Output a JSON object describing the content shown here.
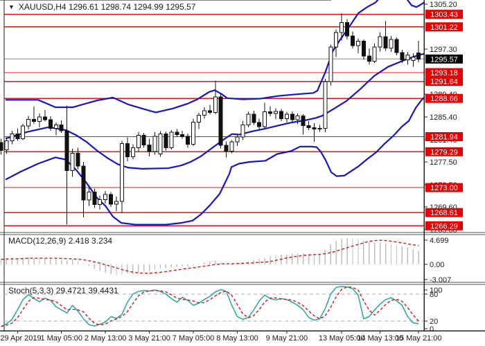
{
  "header": {
    "symbol_ohlc_label": "XAUUSD,H4  1296.61 1298.74 1294.99 1295.57",
    "dropdown_glyph": "▼"
  },
  "colors": {
    "background": "#ffffff",
    "level_line": "#f01010",
    "level_box_bg": "#e60000",
    "level_box_text": "#ffffff",
    "current_line": "#b0b0b0",
    "current_box_bg": "#000000",
    "current_box_text": "#ffffff",
    "band_blue": "#1414cc",
    "candle_up_fill": "#ffffff",
    "candle_down_fill": "#111111",
    "candle_stroke": "#111111",
    "macd_hist": "#bdbdbd",
    "signal_red": "#e01010",
    "stoch_k": "#26a69e",
    "stoch_level_dash": "#aaaaaa",
    "axis_line": "#222222",
    "axis_text": "#1a1a1a",
    "panel_border": "#555555"
  },
  "indicator_labels": {
    "macd": "MACD(12,26,9) 2.418 3.234",
    "stoch": "Stoch(5,3,3) 29.4721 39.4431"
  },
  "chart_data": {
    "type": "candlestick-with-indicators",
    "symbol": "XAUUSD",
    "timeframe": "H4",
    "current_bar": {
      "open": 1296.61,
      "high": 1298.74,
      "low": 1294.99,
      "close": 1295.57
    },
    "current_price": 1295.57,
    "main": {
      "y_ticks": [
        {
          "label": "1305.20",
          "price": 1305.2
        },
        {
          "label": "1297.30",
          "price": 1297.3
        },
        {
          "label": "1289.40",
          "price": 1289.4
        },
        {
          "label": "1285.40",
          "price": 1285.4
        },
        {
          "label": "1281.40",
          "price": 1281.4
        },
        {
          "label": "1277.50",
          "price": 1277.5
        },
        {
          "label": "1273.50",
          "price": 1273.5
        },
        {
          "label": "1269.60",
          "price": 1269.6
        },
        {
          "label": "1265.60",
          "price": 1265.6
        }
      ],
      "levels": [
        1303.43,
        1301.22,
        1293.18,
        1291.64,
        1288.66,
        1281.94,
        1279.29,
        1273.0,
        1268.61,
        1266.29
      ],
      "level_labels": [
        "1303.43",
        "1301.22",
        "1293.18",
        "1291.64",
        "1288.66",
        "1281.94",
        "1279.29",
        "1273.00",
        "1268.61",
        "1266.29"
      ],
      "current_label": "1295.57",
      "candles_ohlc": [
        [
          1280.9,
          1281.6,
          1278.8,
          1279.5
        ],
        [
          1279.6,
          1281.8,
          1278.9,
          1281.2
        ],
        [
          1281.2,
          1283.0,
          1280.6,
          1282.4
        ],
        [
          1282.4,
          1283.4,
          1281.2,
          1281.6
        ],
        [
          1281.6,
          1284.2,
          1281.3,
          1283.8
        ],
        [
          1283.8,
          1285.6,
          1283.2,
          1285.0
        ],
        [
          1285.0,
          1287.2,
          1284.2,
          1284.6
        ],
        [
          1284.6,
          1286.0,
          1283.6,
          1285.4
        ],
        [
          1285.4,
          1286.6,
          1284.6,
          1284.9
        ],
        [
          1284.9,
          1285.5,
          1283.0,
          1283.4
        ],
        [
          1283.4,
          1284.4,
          1282.2,
          1284.0
        ],
        [
          1284.0,
          1284.8,
          1282.6,
          1283.0
        ],
        [
          1283.0,
          1287.4,
          1266.5,
          1276.0
        ],
        [
          1276.0,
          1279.8,
          1274.9,
          1279.0
        ],
        [
          1279.0,
          1280.0,
          1276.2,
          1276.8
        ],
        [
          1276.8,
          1277.5,
          1267.8,
          1270.8
        ],
        [
          1270.8,
          1273.0,
          1269.8,
          1272.2
        ],
        [
          1272.2,
          1272.8,
          1269.4,
          1270.0
        ],
        [
          1270.0,
          1271.6,
          1269.2,
          1270.9
        ],
        [
          1270.9,
          1272.4,
          1270.2,
          1271.8
        ],
        [
          1271.8,
          1272.2,
          1269.6,
          1270.1
        ],
        [
          1270.1,
          1271.4,
          1268.9,
          1270.6
        ],
        [
          1270.6,
          1281.2,
          1268.6,
          1280.7
        ],
        [
          1280.7,
          1281.8,
          1277.6,
          1278.4
        ],
        [
          1278.4,
          1280.6,
          1277.9,
          1280.0
        ],
        [
          1280.0,
          1282.8,
          1279.3,
          1282.2
        ],
        [
          1282.2,
          1282.6,
          1280.0,
          1280.5
        ],
        [
          1280.5,
          1281.6,
          1278.5,
          1279.3
        ],
        [
          1279.3,
          1282.7,
          1278.8,
          1282.0
        ],
        [
          1278.9,
          1282.9,
          1278.4,
          1282.4
        ],
        [
          1282.4,
          1282.8,
          1279.5,
          1280.0
        ],
        [
          1280.0,
          1283.1,
          1279.7,
          1282.7
        ],
        [
          1282.7,
          1283.3,
          1281.9,
          1282.3
        ],
        [
          1282.3,
          1283.0,
          1281.6,
          1282.0
        ],
        [
          1282.0,
          1282.5,
          1280.0,
          1280.6
        ],
        [
          1280.6,
          1285.1,
          1280.3,
          1284.5
        ],
        [
          1284.5,
          1286.1,
          1283.3,
          1285.7
        ],
        [
          1285.7,
          1287.1,
          1285.1,
          1286.5
        ],
        [
          1286.5,
          1287.5,
          1285.8,
          1286.2
        ],
        [
          1286.2,
          1291.8,
          1285.9,
          1288.9
        ],
        [
          1288.9,
          1289.5,
          1279.9,
          1280.4
        ],
        [
          1280.4,
          1281.1,
          1278.3,
          1279.4
        ],
        [
          1279.4,
          1281.3,
          1279.0,
          1281.0
        ],
        [
          1281.0,
          1282.5,
          1280.3,
          1281.9
        ],
        [
          1281.9,
          1284.7,
          1281.3,
          1284.0
        ],
        [
          1284.0,
          1286.3,
          1283.6,
          1285.9
        ],
        [
          1285.9,
          1286.5,
          1284.0,
          1284.4
        ],
        [
          1284.4,
          1285.1,
          1283.3,
          1283.7
        ],
        [
          1283.7,
          1287.9,
          1283.4,
          1286.3
        ],
        [
          1286.3,
          1287.3,
          1285.5,
          1286.0
        ],
        [
          1286.0,
          1286.9,
          1285.0,
          1286.4
        ],
        [
          1286.4,
          1286.8,
          1284.7,
          1285.1
        ],
        [
          1285.1,
          1286.3,
          1284.4,
          1285.9
        ],
        [
          1285.9,
          1286.4,
          1284.5,
          1284.9
        ],
        [
          1284.9,
          1286.0,
          1284.1,
          1285.6
        ],
        [
          1285.6,
          1285.9,
          1282.3,
          1283.9
        ],
        [
          1283.9,
          1284.7,
          1283.1,
          1283.5
        ],
        [
          1283.5,
          1284.3,
          1281.0,
          1283.3
        ],
        [
          1283.3,
          1284.0,
          1282.8,
          1283.4
        ],
        [
          1283.4,
          1292.1,
          1282.7,
          1291.6
        ],
        [
          1291.6,
          1298.1,
          1290.9,
          1297.7
        ],
        [
          1297.7,
          1300.8,
          1295.9,
          1300.2
        ],
        [
          1300.2,
          1303.6,
          1298.8,
          1302.0
        ],
        [
          1302.0,
          1302.6,
          1299.0,
          1299.6
        ],
        [
          1299.6,
          1300.4,
          1297.4,
          1297.9
        ],
        [
          1297.9,
          1299.2,
          1296.6,
          1298.7
        ],
        [
          1298.7,
          1299.0,
          1295.5,
          1296.1
        ],
        [
          1296.1,
          1297.4,
          1294.6,
          1295.2
        ],
        [
          1295.2,
          1298.3,
          1294.9,
          1297.7
        ],
        [
          1297.7,
          1300.2,
          1296.9,
          1299.5
        ],
        [
          1299.5,
          1302.2,
          1297.0,
          1297.5
        ],
        [
          1297.5,
          1299.6,
          1296.8,
          1299.0
        ],
        [
          1299.0,
          1299.4,
          1296.2,
          1296.7
        ],
        [
          1296.7,
          1297.2,
          1294.9,
          1295.4
        ],
        [
          1295.4,
          1296.8,
          1294.6,
          1296.3
        ],
        [
          1295.3,
          1296.6,
          1294.2,
          1295.9
        ],
        [
          1296.61,
          1298.74,
          1294.99,
          1295.57
        ]
      ],
      "bollinger": {
        "upper": [
          [
            8,
            1288.4
          ],
          [
            55,
            1288.4
          ],
          [
            80,
            1287.1
          ],
          [
            105,
            1287.1
          ],
          [
            140,
            1288.3
          ],
          [
            163,
            1288.8
          ],
          [
            185,
            1287.6
          ],
          [
            210,
            1286.7
          ],
          [
            225,
            1286.2
          ],
          [
            250,
            1286.9
          ],
          [
            270,
            1287.7
          ],
          [
            285,
            1288.5
          ],
          [
            302,
            1289.8
          ],
          [
            310,
            1290.1
          ],
          [
            320,
            1289.4
          ],
          [
            328,
            1288.7
          ],
          [
            350,
            1288.5
          ],
          [
            375,
            1288.6
          ],
          [
            402,
            1289.1
          ],
          [
            430,
            1289.4
          ],
          [
            452,
            1289.6
          ],
          [
            458,
            1290.0
          ],
          [
            470,
            1293.4
          ],
          [
            480,
            1296.9
          ],
          [
            490,
            1298.8
          ],
          [
            505,
            1301.4
          ],
          [
            517,
            1303.6
          ],
          [
            530,
            1304.7
          ],
          [
            542,
            1305.5
          ],
          [
            548,
            1306.3
          ],
          [
            586,
            1306.3
          ],
          [
            594,
            1305.0
          ],
          [
            601,
            1304.7
          ],
          [
            607,
            1305.1
          ],
          [
            612,
            1305.5
          ]
        ],
        "middle": [
          [
            8,
            1281.6
          ],
          [
            40,
            1282.8
          ],
          [
            70,
            1283.6
          ],
          [
            85,
            1283.3
          ],
          [
            95,
            1283.1
          ],
          [
            110,
            1282.2
          ],
          [
            125,
            1281.0
          ],
          [
            140,
            1279.5
          ],
          [
            155,
            1278.2
          ],
          [
            170,
            1277.1
          ],
          [
            185,
            1276.5
          ],
          [
            205,
            1276.3
          ],
          [
            243,
            1276.4
          ],
          [
            262,
            1276.9
          ],
          [
            275,
            1277.5
          ],
          [
            290,
            1278.5
          ],
          [
            310,
            1280.3
          ],
          [
            327,
            1281.8
          ],
          [
            335,
            1282.4
          ],
          [
            345,
            1282.3
          ],
          [
            365,
            1282.9
          ],
          [
            385,
            1283.4
          ],
          [
            402,
            1283.9
          ],
          [
            420,
            1284.4
          ],
          [
            440,
            1284.8
          ],
          [
            455,
            1285.2
          ],
          [
            465,
            1285.6
          ],
          [
            480,
            1286.7
          ],
          [
            500,
            1288.2
          ],
          [
            520,
            1290.3
          ],
          [
            540,
            1292.6
          ],
          [
            560,
            1294.2
          ],
          [
            580,
            1295.2
          ],
          [
            600,
            1296.1
          ],
          [
            612,
            1296.5
          ]
        ],
        "lower": [
          [
            8,
            1274.4
          ],
          [
            30,
            1275.8
          ],
          [
            55,
            1277.2
          ],
          [
            80,
            1278.3
          ],
          [
            95,
            1277.9
          ],
          [
            110,
            1276.1
          ],
          [
            125,
            1273.8
          ],
          [
            140,
            1271.2
          ],
          [
            152,
            1269.8
          ],
          [
            163,
            1267.9
          ],
          [
            175,
            1266.8
          ],
          [
            195,
            1266.5
          ],
          [
            240,
            1266.5
          ],
          [
            262,
            1266.8
          ],
          [
            278,
            1267.2
          ],
          [
            290,
            1268.3
          ],
          [
            303,
            1269.9
          ],
          [
            317,
            1271.9
          ],
          [
            327,
            1274.4
          ],
          [
            331,
            1275.4
          ],
          [
            334,
            1276.6
          ],
          [
            345,
            1277.2
          ],
          [
            360,
            1277.5
          ],
          [
            383,
            1277.7
          ],
          [
            400,
            1278.9
          ],
          [
            420,
            1279.4
          ],
          [
            433,
            1280.2
          ],
          [
            450,
            1280.2
          ],
          [
            457,
            1280.1
          ],
          [
            463,
            1279.3
          ],
          [
            470,
            1277.8
          ],
          [
            478,
            1275.7
          ],
          [
            486,
            1275.0
          ],
          [
            497,
            1275.1
          ],
          [
            507,
            1275.9
          ],
          [
            517,
            1276.7
          ],
          [
            530,
            1278.0
          ],
          [
            543,
            1279.2
          ],
          [
            555,
            1280.7
          ],
          [
            567,
            1282.0
          ],
          [
            580,
            1283.7
          ],
          [
            590,
            1284.7
          ],
          [
            600,
            1287.0
          ],
          [
            608,
            1288.3
          ],
          [
            612,
            1288.8
          ]
        ]
      }
    },
    "macd": {
      "params": "12,26,9",
      "values_label": [
        "2.418",
        "3.234"
      ],
      "y_ticks": [
        {
          "label": "4.699",
          "value": 4.699
        },
        {
          "label": "0.00",
          "value": 0.0
        },
        {
          "label": "-3.007",
          "value": -3.007
        }
      ],
      "histogram": [
        0.9,
        1.0,
        1.1,
        1.0,
        1.2,
        1.3,
        1.1,
        1.2,
        1.0,
        0.9,
        1.0,
        0.8,
        0.7,
        0.9,
        0.6,
        0.2,
        -0.3,
        -0.8,
        -1.2,
        -1.5,
        -1.7,
        -1.9,
        -1.8,
        -1.6,
        -1.7,
        -1.5,
        -1.3,
        -1.2,
        -1.0,
        -0.8,
        -0.7,
        -0.5,
        -0.4,
        -0.3,
        -0.35,
        -0.2,
        0.1,
        0.3,
        0.5,
        0.6,
        0.3,
        -0.1,
        -0.2,
        0.0,
        0.2,
        0.5,
        0.8,
        1.0,
        1.1,
        1.4,
        1.6,
        1.7,
        1.8,
        1.9,
        1.9,
        2.0,
        1.8,
        1.7,
        1.6,
        2.6,
        3.6,
        4.2,
        4.6,
        4.7,
        4.6,
        4.5,
        4.2,
        4.0,
        3.9,
        3.9,
        3.8,
        3.6,
        3.4,
        3.2,
        3.0,
        2.7,
        2.42
      ]
    },
    "stoch": {
      "params": "5,3,3",
      "values_label": [
        "29.4721",
        "39.4431"
      ],
      "y_ticks": [
        {
          "label": "100",
          "value": 100
        },
        {
          "label": "80",
          "value": 80
        },
        {
          "label": "20",
          "value": 20
        },
        {
          "label": "0",
          "value": 0
        }
      ],
      "upper_level": 80,
      "lower_level": 20,
      "k_values": [
        8,
        14,
        24,
        45,
        68,
        79,
        70,
        63,
        71,
        66,
        52,
        45,
        38,
        55,
        42,
        25,
        12,
        9,
        13,
        18,
        30,
        26,
        35,
        62,
        80,
        86,
        88,
        87,
        89,
        86,
        80,
        70,
        62,
        73,
        66,
        55,
        60,
        68,
        75,
        85,
        90,
        86,
        55,
        30,
        24,
        28,
        45,
        65,
        78,
        70,
        67,
        70,
        68,
        62,
        55,
        45,
        28,
        22,
        25,
        48,
        80,
        95,
        97,
        96,
        92,
        78,
        25,
        30,
        45,
        58,
        68,
        72,
        65,
        55,
        30,
        16,
        14
      ]
    },
    "x_axis": {
      "labels": [
        "29 Apr 2019",
        "1 May 05:00",
        "2 May 13:00",
        "3 May 21:00",
        "7 May 05:00",
        "8 May 13:00",
        "9 May 21:00",
        "13 May 05:00",
        "14 May 13:00",
        "15 May 21:00"
      ],
      "label_bar_index": [
        3,
        11,
        19,
        27,
        35,
        43,
        52,
        62,
        69,
        76
      ]
    }
  }
}
